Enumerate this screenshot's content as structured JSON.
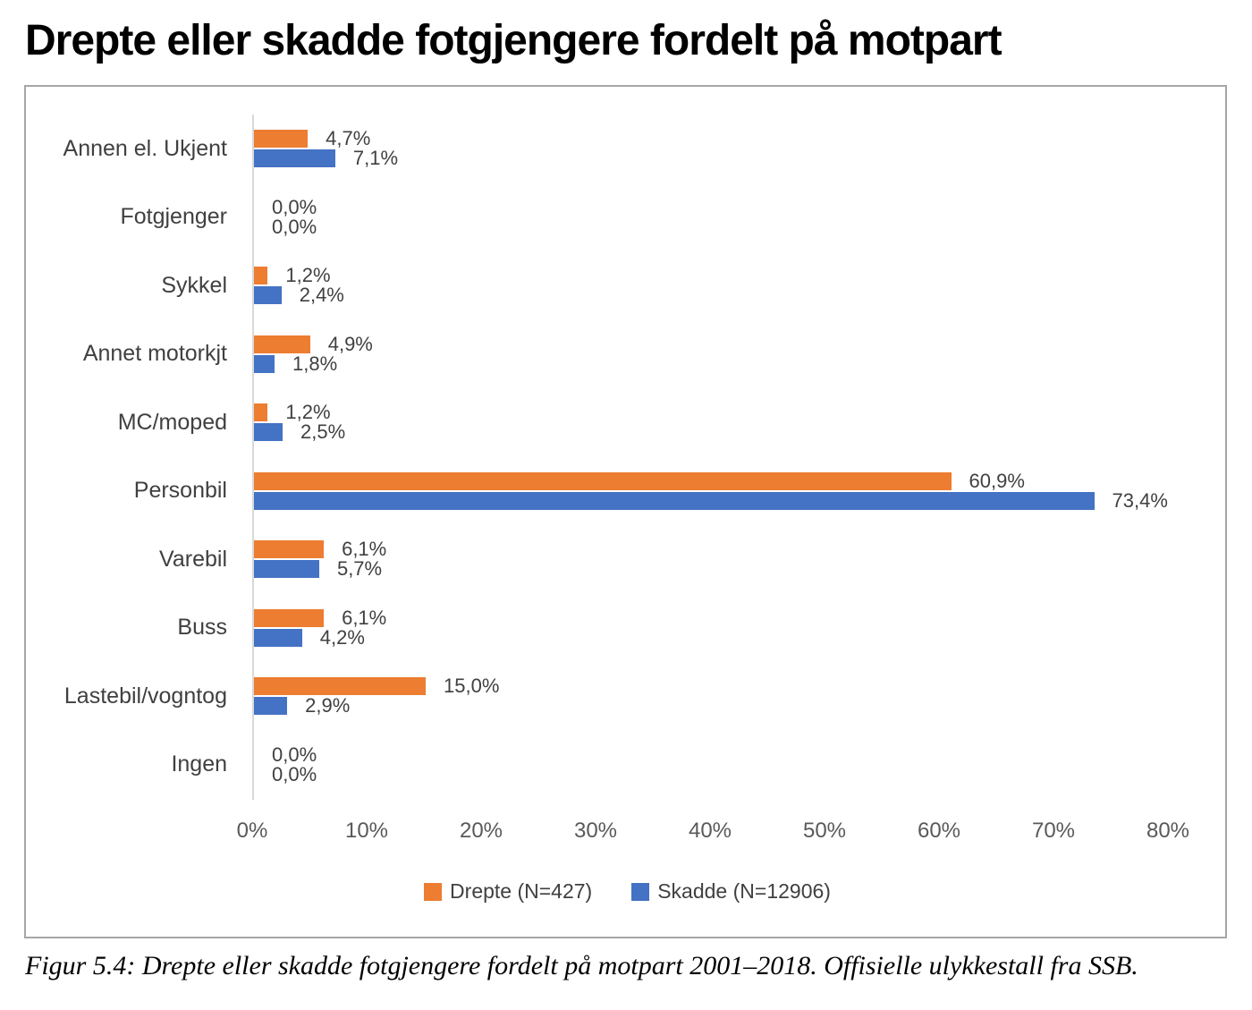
{
  "title": "Drepte eller skadde fotgjengere fordelt på motpart",
  "caption": "Figur 5.4: Drepte eller skadde fotgjengere fordelt på motpart 2001–2018. Offisielle ulykkestall fra SSB.",
  "colors": {
    "drepte": "#ED7D31",
    "skadde": "#4472C4",
    "axis_line": "#D9D9D9",
    "box_border": "#A6A6A6",
    "label_text": "#404040",
    "tick_text": "#595959"
  },
  "chart_data": {
    "type": "bar",
    "orientation": "horizontal",
    "title": "Drepte eller skadde fotgjengere fordelt på motpart",
    "categories": [
      "Annen el. Ukjent",
      "Fotgjenger",
      "Sykkel",
      "Annet motorkjt",
      "MC/moped",
      "Personbil",
      "Varebil",
      "Buss",
      "Lastebil/vogntog",
      "Ingen"
    ],
    "series": [
      {
        "name": "Drepte (N=427)",
        "color": "#ED7D31",
        "values": [
          4.7,
          0.0,
          1.2,
          4.9,
          1.2,
          60.9,
          6.1,
          6.1,
          15.0,
          0.0
        ],
        "labels": [
          "4,7%",
          "0,0%",
          "1,2%",
          "4,9%",
          "1,2%",
          "60,9%",
          "6,1%",
          "6,1%",
          "15,0%",
          "0,0%"
        ]
      },
      {
        "name": "Skadde (N=12906)",
        "color": "#4472C4",
        "values": [
          7.1,
          0.0,
          2.4,
          1.8,
          2.5,
          73.4,
          5.7,
          4.2,
          2.9,
          0.0
        ],
        "labels": [
          "7,1%",
          "0,0%",
          "2,4%",
          "1,8%",
          "2,5%",
          "73,4%",
          "5,7%",
          "4,2%",
          "2,9%",
          "0,0%"
        ]
      }
    ],
    "xlim": [
      0,
      80
    ],
    "x_tick_labels": [
      "0%",
      "10%",
      "20%",
      "30%",
      "40%",
      "50%",
      "60%",
      "70%",
      "80%"
    ],
    "grid": false,
    "legend_position": "bottom"
  }
}
